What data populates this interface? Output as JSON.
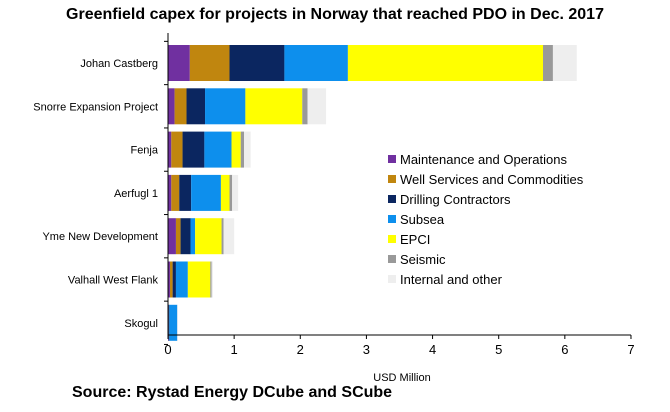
{
  "chart_data": {
    "type": "bar",
    "orientation": "horizontal",
    "stacked": true,
    "title": "Greenfield capex for projects in Norway that reached PDO in Dec. 2017",
    "xlabel": "USD Million",
    "ylabel": "",
    "xlim": [
      0,
      7
    ],
    "x_ticks": [
      "0",
      "1",
      "2",
      "3",
      "4",
      "5",
      "6",
      "7"
    ],
    "grid": false,
    "legend_position": "right",
    "categories": [
      "Johan Castberg",
      "Snorre Expansion Project",
      "Fenja",
      "Aerfugl 1",
      "Yme New Development",
      "Valhall West Flank",
      "Skogul"
    ],
    "series": [
      {
        "name": "Maintenance and Operations",
        "color": "#7030a0",
        "values": [
          0.33,
          0.1,
          0.05,
          0.05,
          0.12,
          0.03,
          0.01
        ]
      },
      {
        "name": "Well Services and Commodities",
        "color": "#c0860f",
        "values": [
          0.6,
          0.18,
          0.17,
          0.12,
          0.07,
          0.04,
          0.0
        ]
      },
      {
        "name": "Drilling Contractors",
        "color": "#0b2660",
        "values": [
          0.83,
          0.28,
          0.33,
          0.18,
          0.15,
          0.05,
          0.01
        ]
      },
      {
        "name": "Subsea",
        "color": "#0d8fed",
        "values": [
          0.96,
          0.61,
          0.41,
          0.45,
          0.07,
          0.18,
          0.12
        ]
      },
      {
        "name": "EPCI",
        "color": "#ffff00",
        "values": [
          2.95,
          0.86,
          0.14,
          0.13,
          0.4,
          0.34,
          0.0
        ]
      },
      {
        "name": "Seismic",
        "color": "#999999",
        "values": [
          0.15,
          0.08,
          0.05,
          0.04,
          0.03,
          0.02,
          0.0
        ]
      },
      {
        "name": "Internal and other",
        "color": "#eeeeee",
        "values": [
          0.36,
          0.28,
          0.1,
          0.09,
          0.16,
          0.02,
          0.01
        ]
      }
    ]
  },
  "source_note": "Source: Rystad Energy DCube and SCube"
}
